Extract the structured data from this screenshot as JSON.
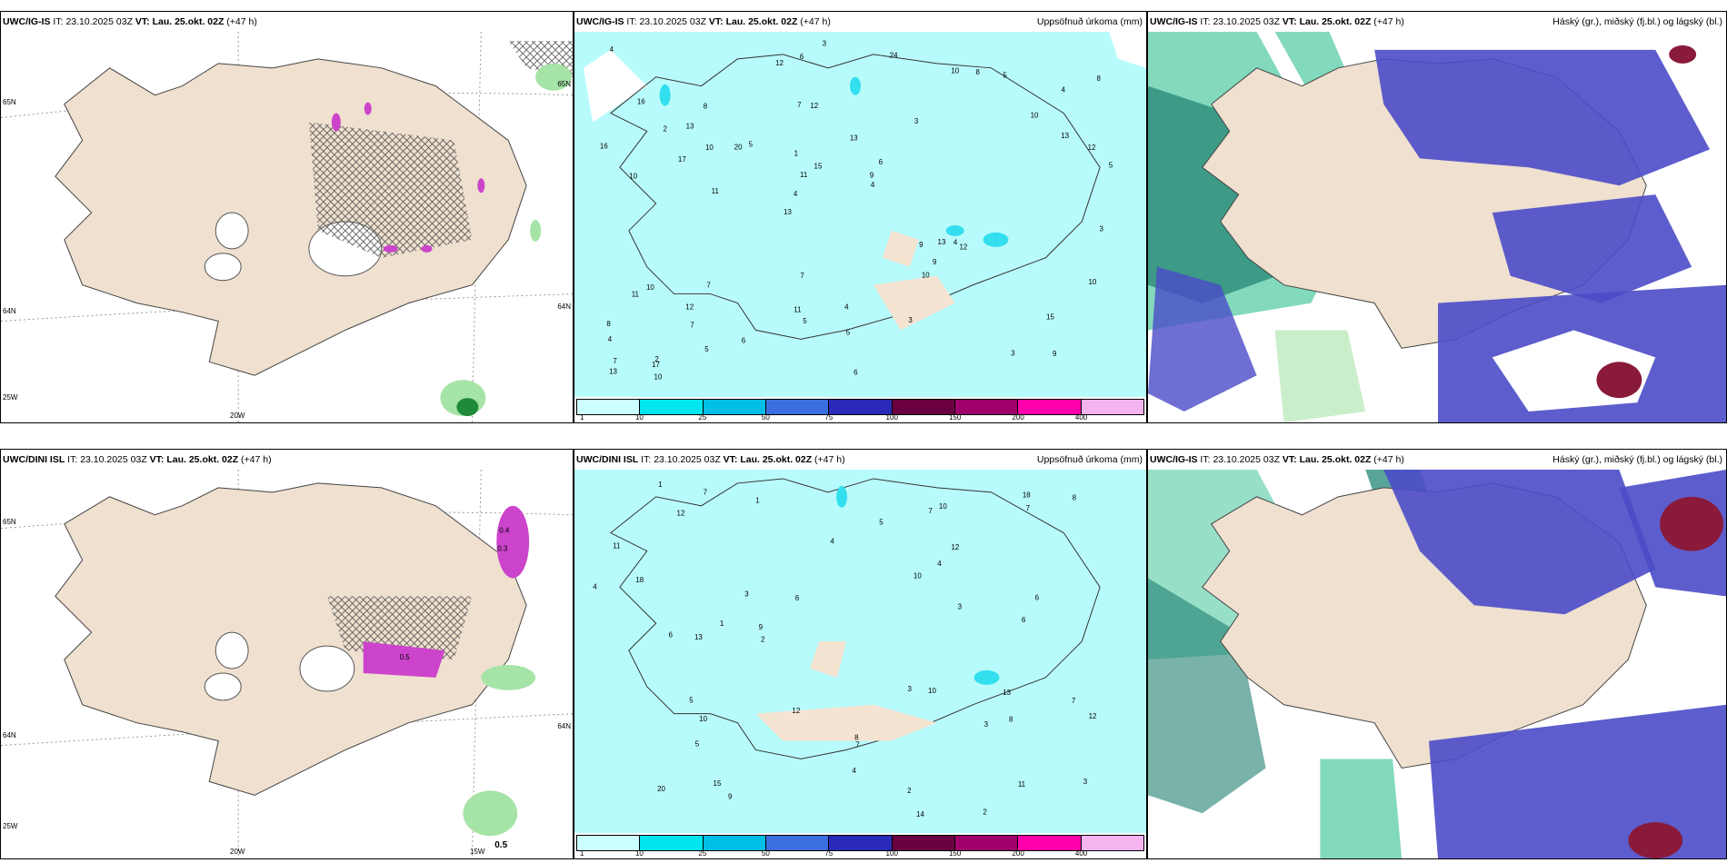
{
  "panels": [
    {
      "model": "UWC/IG-IS",
      "it_label": "IT:",
      "it": "23.10.2025 03Z",
      "vt_label": "VT:",
      "vt": "Lau. 25.okt. 02Z",
      "lead": "(+47 h)",
      "right_title": "",
      "axis": [
        "65N",
        "64N",
        "25W",
        "20W",
        "65N",
        "64N"
      ]
    },
    {
      "model": "UWC/IG-IS",
      "it_label": "IT:",
      "it": "23.10.2025 03Z",
      "vt_label": "VT:",
      "vt": "Lau. 25.okt. 02Z",
      "lead": "(+47 h)",
      "right_title": "Uppsöfnuð úrkoma (mm)"
    },
    {
      "model": "UWC/IG-IS",
      "it_label": "IT:",
      "it": "23.10.2025 03Z",
      "vt_label": "VT:",
      "vt": "Lau. 25.okt. 02Z",
      "lead": "(+47 h)",
      "right_title": "Háský (gr.), miðský (fj.bl.) og lágský (bl.)"
    },
    {
      "model": "UWC/DINI ISL",
      "it_label": "IT:",
      "it": "23.10.2025 03Z",
      "vt_label": "VT:",
      "vt": "Lau. 25.okt. 02Z",
      "lead": "(+47 h)",
      "right_title": "",
      "axis": [
        "65N",
        "64N",
        "25W",
        "20W",
        "15W",
        "64N"
      ]
    },
    {
      "model": "UWC/DINI ISL",
      "it_label": "IT:",
      "it": "23.10.2025 03Z",
      "vt_label": "VT:",
      "vt": "Lau. 25.okt. 02Z",
      "lead": "(+47 h)",
      "right_title": "Uppsöfnuð úrkoma (mm)"
    },
    {
      "model": "UWC/IG-IS",
      "it_label": "IT:",
      "it": "23.10.2025 03Z",
      "vt_label": "VT:",
      "vt": "Lau. 25.okt. 02Z",
      "lead": "(+47 h)",
      "right_title": "Háský (gr.), miðský (fj.bl.) og lágský (bl.)"
    }
  ],
  "colorbar": {
    "ticks": [
      "1",
      "10",
      "25",
      "50",
      "75",
      "100",
      "150",
      "200",
      "400"
    ],
    "colors": [
      "#ccffff",
      "#00e5ee",
      "#00bfe6",
      "#3b6fe0",
      "#2a2ab8",
      "#6a0040",
      "#a0006a",
      "#ff00aa",
      "#f5b3f0"
    ]
  },
  "precip_values_top": [
    "9",
    "10",
    "4",
    "13",
    "3",
    "2",
    "7",
    "13",
    "10",
    "5",
    "4",
    "7",
    "12",
    "6",
    "12",
    "16",
    "6",
    "5",
    "9",
    "13",
    "4",
    "11",
    "11",
    "8",
    "10",
    "7",
    "3",
    "15",
    "4",
    "6",
    "20",
    "17",
    "10",
    "5",
    "12",
    "9",
    "7",
    "5",
    "4",
    "11",
    "10",
    "8",
    "9",
    "3",
    "12",
    "10",
    "13",
    "4",
    "5",
    "3",
    "11",
    "16",
    "13",
    "8",
    "17",
    "24",
    "12",
    "15",
    "10",
    "7",
    "6",
    "13",
    "10",
    "8",
    "4",
    "2",
    "3",
    "1",
    "5"
  ],
  "precip_values_bottom": [
    "7",
    "2",
    "7",
    "20",
    "8",
    "3",
    "1",
    "12",
    "14",
    "6",
    "10",
    "7",
    "4",
    "3",
    "9",
    "12",
    "5",
    "15",
    "7",
    "4",
    "18",
    "13",
    "11",
    "6",
    "8",
    "10",
    "3",
    "12",
    "5",
    "1",
    "4",
    "6",
    "3",
    "2",
    "12",
    "13",
    "11",
    "18",
    "2",
    "1",
    "8",
    "4",
    "10",
    "7",
    "5",
    "3",
    "6",
    "9",
    "10"
  ],
  "map_labels": [
    "0.4",
    "0.3",
    "0.5",
    "0.5"
  ],
  "colors": {
    "land": "#efe0cf",
    "precip_base": "#b8fbfc",
    "precip_mid": "#33dfee",
    "high_cloud": "#2fbf8f",
    "mid_cloud": "#4b4bc8",
    "low_cloud": "#8a1a3a",
    "snow_pink": "#cc44cc",
    "green_precip": "#a6e3a6"
  }
}
